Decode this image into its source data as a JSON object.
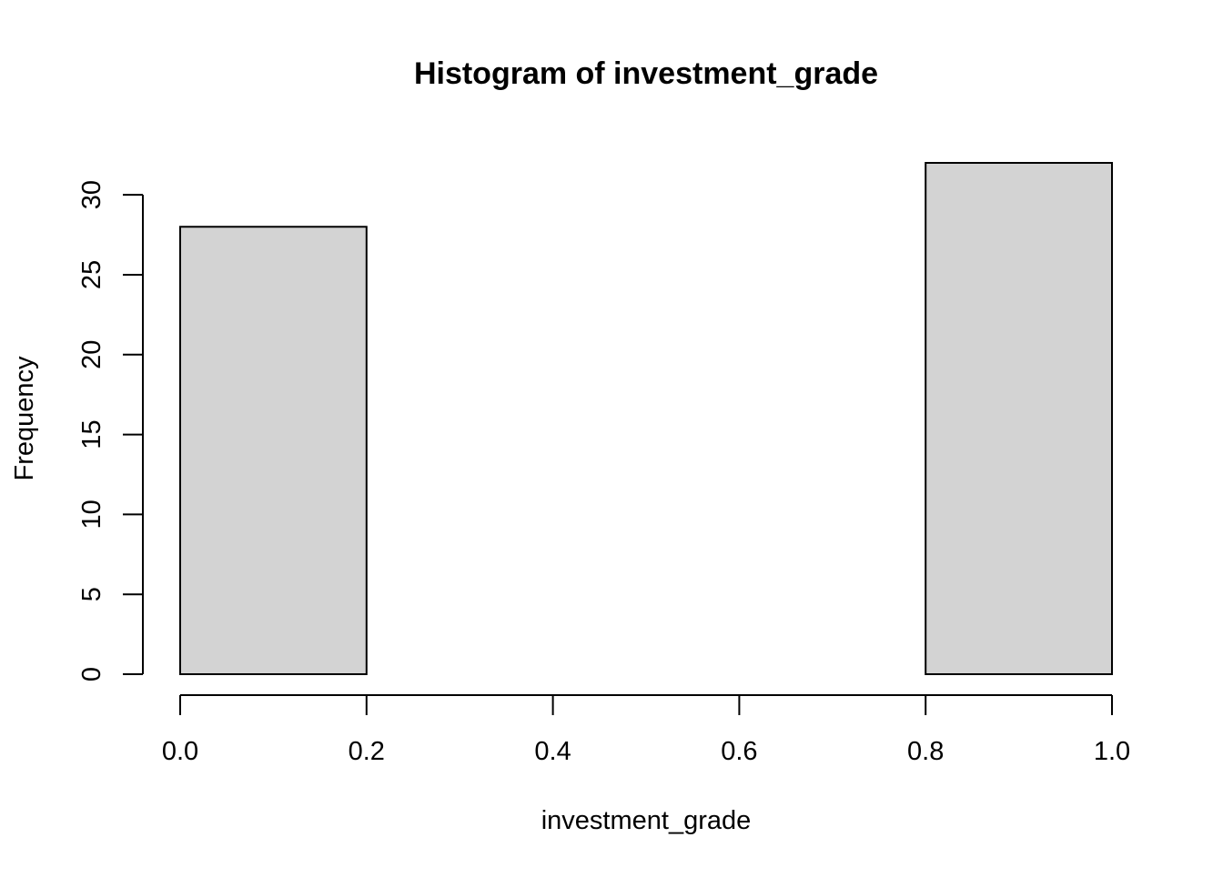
{
  "chart_data": {
    "type": "bar",
    "subtype": "histogram",
    "title": "Histogram of investment_grade",
    "xlabel": "investment_grade",
    "ylabel": "Frequency",
    "bins": [
      {
        "x0": 0.0,
        "x1": 0.2,
        "count": 28
      },
      {
        "x0": 0.2,
        "x1": 0.4,
        "count": 0
      },
      {
        "x0": 0.4,
        "x1": 0.6,
        "count": 0
      },
      {
        "x0": 0.6,
        "x1": 0.8,
        "count": 0
      },
      {
        "x0": 0.8,
        "x1": 1.0,
        "count": 32
      }
    ],
    "xlim": [
      0.0,
      1.0
    ],
    "ylim": [
      0,
      32
    ],
    "x_ticks": [
      0.0,
      0.2,
      0.4,
      0.6,
      0.8,
      1.0
    ],
    "x_tick_labels": [
      "0.0",
      "0.2",
      "0.4",
      "0.6",
      "0.8",
      "1.0"
    ],
    "y_ticks": [
      0,
      5,
      10,
      15,
      20,
      25,
      30
    ],
    "y_tick_labels": [
      "0",
      "5",
      "10",
      "15",
      "20",
      "25",
      "30"
    ],
    "grid": false,
    "legend": "none",
    "colors": {
      "bar_fill": "#d3d3d3",
      "bar_stroke": "#000000",
      "axis": "#000000",
      "background": "#ffffff"
    }
  }
}
